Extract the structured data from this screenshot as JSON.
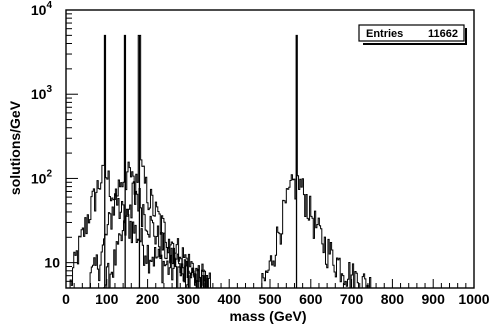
{
  "chart_data": {
    "type": "histogram",
    "xlabel": "mass (GeV)",
    "ylabel": "solutions/GeV",
    "xlim": [
      0,
      1000
    ],
    "ylim": [
      5,
      10000
    ],
    "y_scale": "log",
    "x_ticks": [
      0,
      100,
      200,
      300,
      400,
      500,
      600,
      700,
      800,
      900,
      1000
    ],
    "x_tick_labels": [
      "0",
      "100",
      "200",
      "300",
      "400",
      "500",
      "600",
      "700",
      "800",
      "900",
      "1000"
    ],
    "y_ticks": [
      {
        "value": 10,
        "base": "10",
        "exp": ""
      },
      {
        "value": 100,
        "base": "10",
        "exp": "2"
      },
      {
        "value": 1000,
        "base": "10",
        "exp": "3"
      },
      {
        "value": 10000,
        "base": "10",
        "exp": "4"
      }
    ],
    "stats_box": {
      "label": "Entries",
      "value": "11662"
    },
    "line_color": "#000000",
    "series": [
      {
        "peak_mass": 95,
        "x": [
          10,
          20,
          30,
          40,
          50,
          60,
          70,
          80,
          90,
          95,
          100,
          110,
          120,
          140,
          160,
          180,
          200,
          250,
          300,
          350
        ],
        "y": [
          5,
          9,
          14,
          20,
          30,
          45,
          60,
          85,
          110,
          5000,
          110,
          80,
          55,
          38,
          28,
          20,
          14,
          9,
          7,
          5
        ]
      },
      {
        "peak_mass": 145,
        "x": [
          50,
          70,
          90,
          110,
          125,
          135,
          145,
          155,
          165,
          185,
          205,
          230,
          260,
          300,
          350
        ],
        "y": [
          5,
          8,
          14,
          35,
          70,
          100,
          5000,
          120,
          85,
          50,
          30,
          18,
          12,
          8,
          5
        ]
      },
      {
        "peak_mass": 180,
        "x": [
          90,
          110,
          130,
          150,
          165,
          175,
          180,
          185,
          195,
          215,
          240,
          270,
          300,
          330,
          360
        ],
        "y": [
          5,
          8,
          15,
          30,
          70,
          110,
          5000,
          130,
          80,
          45,
          25,
          15,
          10,
          7,
          5
        ]
      },
      {
        "peak_mass": 565,
        "x": [
          480,
          500,
          515,
          530,
          545,
          555,
          565,
          575,
          590,
          610,
          630,
          660,
          690,
          720,
          760
        ],
        "y": [
          5,
          9,
          18,
          35,
          60,
          85,
          5000,
          85,
          55,
          30,
          18,
          11,
          8,
          6,
          5
        ]
      }
    ]
  }
}
